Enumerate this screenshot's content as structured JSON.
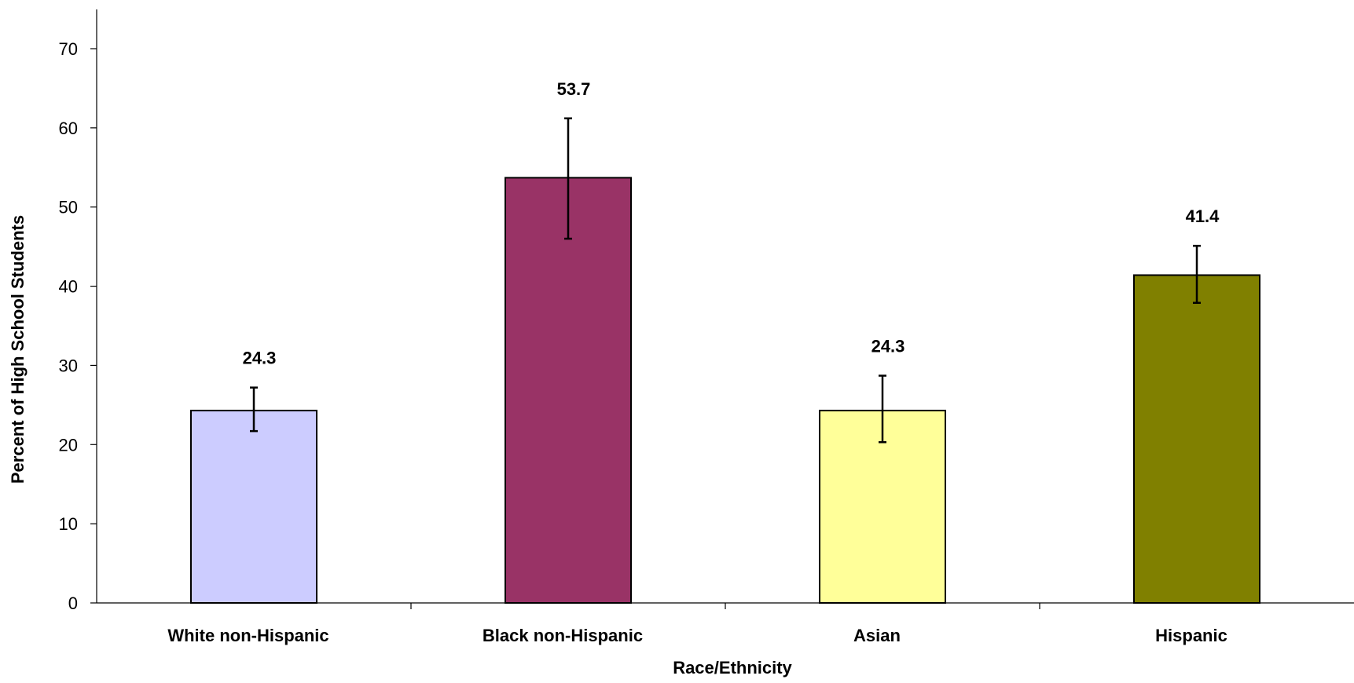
{
  "chart_data": {
    "type": "bar",
    "title": "",
    "xlabel": "Race/Ethnicity",
    "ylabel": "Percent of High School Students",
    "ylim": [
      0,
      70
    ],
    "yticks": [
      0,
      10,
      20,
      30,
      40,
      50,
      60,
      70
    ],
    "grid": false,
    "legend": "none",
    "categories": [
      "White non-Hispanic",
      "Black non-Hispanic",
      "Asian",
      "Hispanic"
    ],
    "values": [
      24.3,
      53.7,
      24.3,
      41.4
    ],
    "data_labels": [
      "24.3",
      "53.7",
      "24.3",
      "41.4"
    ],
    "error_lower": [
      21.7,
      46.0,
      20.3,
      37.9
    ],
    "error_upper": [
      27.2,
      61.2,
      28.7,
      45.1
    ],
    "colors": [
      "#ccccff",
      "#993366",
      "#ffff99",
      "#808000"
    ]
  }
}
